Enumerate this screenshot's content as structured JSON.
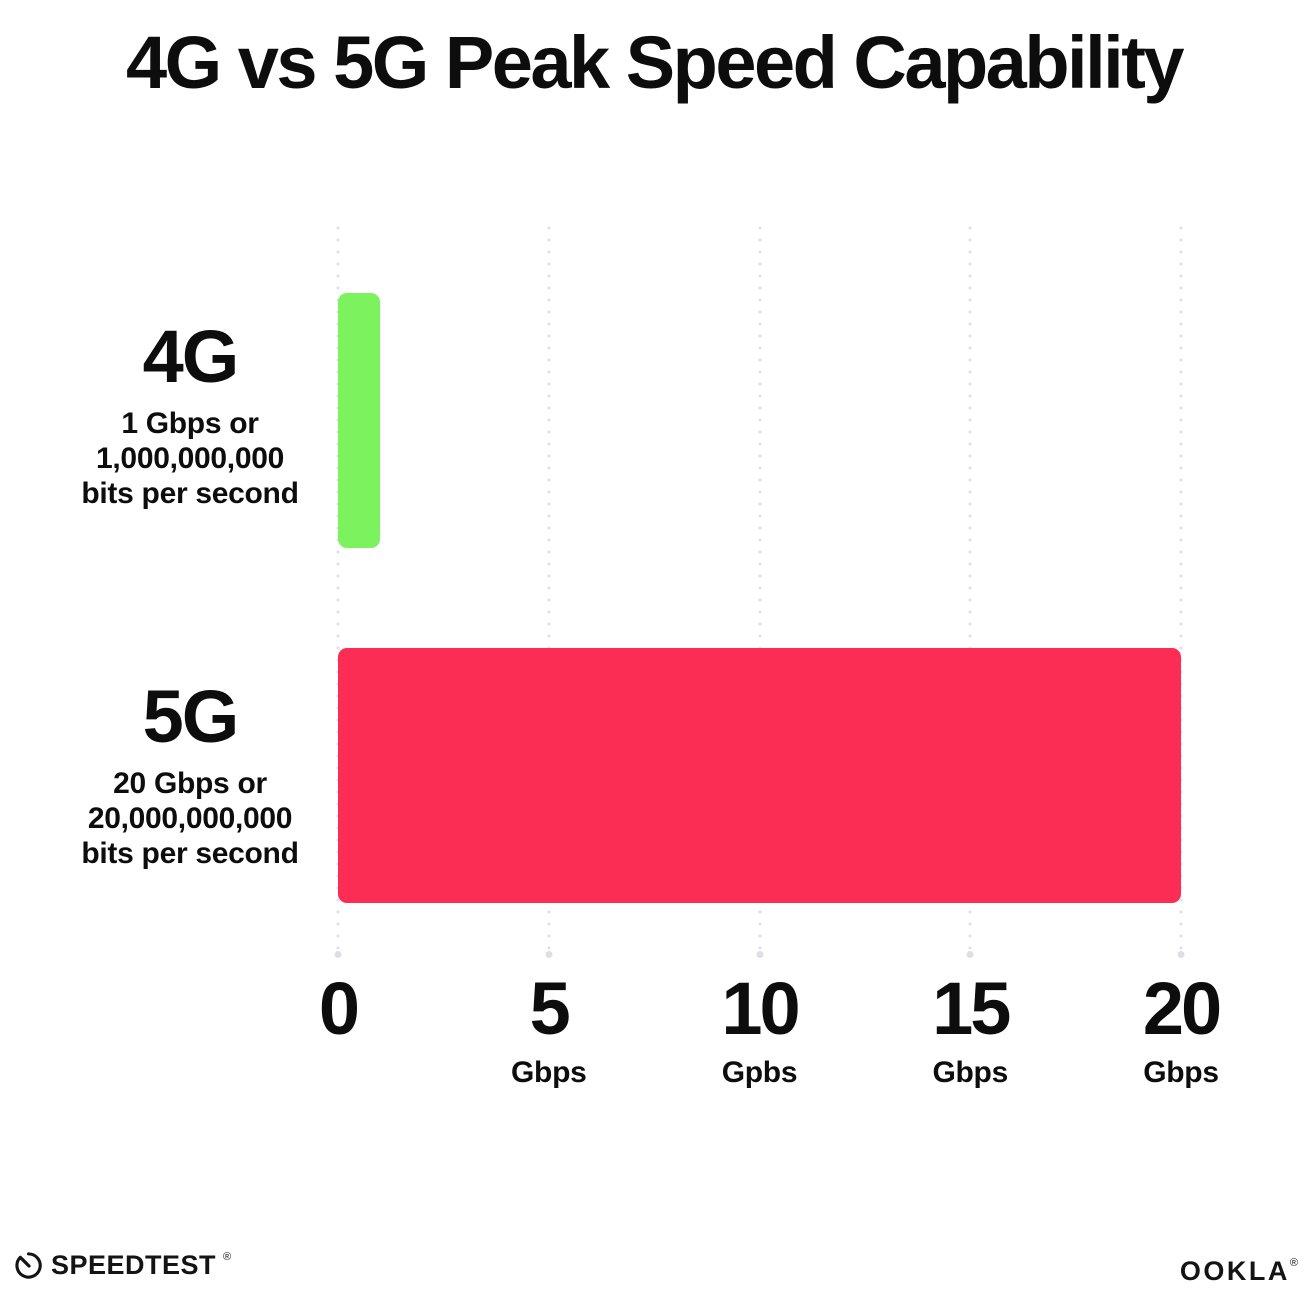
{
  "title": "4G vs 5G Peak Speed Capability",
  "chart_data": {
    "type": "bar",
    "orientation": "horizontal",
    "title": "4G vs 5G Peak Speed Capability",
    "categories": [
      "4G",
      "5G"
    ],
    "values": [
      1,
      20
    ],
    "value_unit": "Gbps",
    "xlim": [
      0,
      20
    ],
    "x_tick_values": [
      0,
      5,
      10,
      15,
      20
    ],
    "grid": "dotted vertical gridlines at each tick",
    "legend": "none",
    "bars": [
      {
        "label": "4G",
        "value": 1,
        "color": "#7df25f",
        "sublabel_lines": [
          "1 Gbps or",
          "1,000,000,000",
          "bits per second"
        ]
      },
      {
        "label": "5G",
        "value": 20,
        "color": "#fb2d55",
        "sublabel_lines": [
          "20 Gbps or",
          "20,000,000,000",
          "bits per second"
        ]
      }
    ],
    "x_ticks": [
      {
        "number": "0",
        "unit": ""
      },
      {
        "number": "5",
        "unit": "Gbps"
      },
      {
        "number": "10",
        "unit": "Gpbs"
      },
      {
        "number": "15",
        "unit": "Gbps"
      },
      {
        "number": "20",
        "unit": "Gbps"
      }
    ]
  },
  "footer": {
    "speedtest": "SPEEDTEST",
    "speedtest_mark": "®",
    "ookla": "OOKLA",
    "ookla_mark": "®"
  },
  "colors": {
    "bar_4g": "#7df25f",
    "bar_5g": "#fb2d55",
    "gridline": "#dedee9",
    "text": "#0d0d0d",
    "background": "#ffffff"
  }
}
